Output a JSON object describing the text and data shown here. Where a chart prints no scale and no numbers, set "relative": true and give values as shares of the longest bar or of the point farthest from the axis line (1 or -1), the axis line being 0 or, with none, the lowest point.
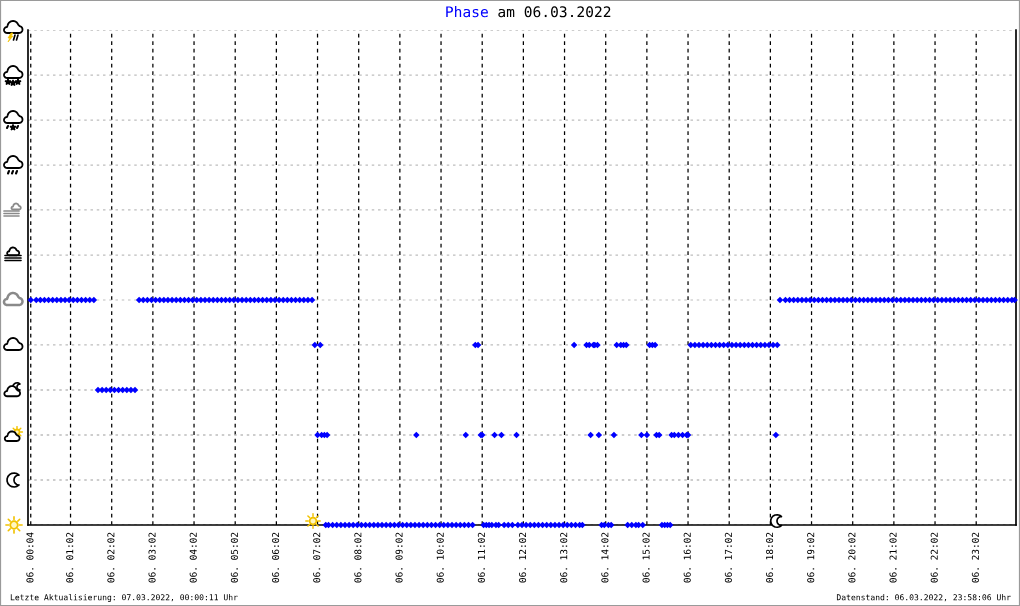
{
  "chart_data": {
    "type": "scatter",
    "title": "am 06.03.2022",
    "annotations": [
      "Letzte Aktualisierung: 07.03.2022, 00:00:11 Uhr",
      "Datenstand: 06.03.2022, 23:58:06 Uhr"
    ],
    "xlim": [
      "2022-03-06T00:00",
      "2022-03-07T00:00"
    ],
    "xticks": [
      {
        "value": "2022-03-06T00:04",
        "label": "06. 00:04"
      },
      {
        "value": "2022-03-06T01:02",
        "label": "06. 01:02"
      },
      {
        "value": "2022-03-06T02:02",
        "label": "06. 02:02"
      },
      {
        "value": "2022-03-06T03:02",
        "label": "06. 03:02"
      },
      {
        "value": "2022-03-06T04:02",
        "label": "06. 04:02"
      },
      {
        "value": "2022-03-06T05:02",
        "label": "06. 05:02"
      },
      {
        "value": "2022-03-06T06:02",
        "label": "06. 06:02"
      },
      {
        "value": "2022-03-06T07:02",
        "label": "06. 07:02"
      },
      {
        "value": "2022-03-06T08:02",
        "label": "06. 08:02"
      },
      {
        "value": "2022-03-06T09:02",
        "label": "06. 09:02"
      },
      {
        "value": "2022-03-06T10:02",
        "label": "06. 10:02"
      },
      {
        "value": "2022-03-06T11:02",
        "label": "06. 11:02"
      },
      {
        "value": "2022-03-06T12:02",
        "label": "06. 12:02"
      },
      {
        "value": "2022-03-06T13:02",
        "label": "06. 13:02"
      },
      {
        "value": "2022-03-06T14:02",
        "label": "06. 14:02"
      },
      {
        "value": "2022-03-06T15:02",
        "label": "06. 15:02"
      },
      {
        "value": "2022-03-06T16:02",
        "label": "06. 16:02"
      },
      {
        "value": "2022-03-06T17:02",
        "label": "06. 17:02"
      },
      {
        "value": "2022-03-06T18:02",
        "label": "06. 18:02"
      },
      {
        "value": "2022-03-06T19:02",
        "label": "06. 19:02"
      },
      {
        "value": "2022-03-06T20:02",
        "label": "06. 20:02"
      },
      {
        "value": "2022-03-06T21:02",
        "label": "06. 21:02"
      },
      {
        "value": "2022-03-06T22:02",
        "label": "06. 22:02"
      },
      {
        "value": "2022-03-06T23:02",
        "label": "06. 23:02"
      }
    ],
    "relative": true,
    "grid": true,
    "marker": "diamond",
    "series": [
      {
        "name": "Phase",
        "color": "#0000ff",
        "x": [
          "2022-03-06T00:04",
          "2022-03-06T00:12",
          "2022-03-06T00:18",
          "2022-03-06T00:24",
          "2022-03-06T00:30",
          "2022-03-06T00:36",
          "2022-03-06T00:42",
          "2022-03-06T00:48",
          "2022-03-06T00:54",
          "2022-03-06T01:00",
          "2022-03-06T01:06",
          "2022-03-06T01:12",
          "2022-03-06T01:18",
          "2022-03-06T01:24",
          "2022-03-06T01:30",
          "2022-03-06T01:36",
          "2022-03-06T01:42",
          "2022-03-06T01:48",
          "2022-03-06T01:54",
          "2022-03-06T02:00",
          "2022-03-06T02:06",
          "2022-03-06T02:12",
          "2022-03-06T02:18",
          "2022-03-06T02:24",
          "2022-03-06T02:30",
          "2022-03-06T02:36",
          "2022-03-06T02:42",
          "2022-03-06T02:48",
          "2022-03-06T02:54",
          "2022-03-06T03:00",
          "2022-03-06T03:06",
          "2022-03-06T03:12",
          "2022-03-06T03:18",
          "2022-03-06T03:24",
          "2022-03-06T03:30",
          "2022-03-06T03:36",
          "2022-03-06T03:42",
          "2022-03-06T03:48",
          "2022-03-06T03:54",
          "2022-03-06T04:00",
          "2022-03-06T04:06",
          "2022-03-06T04:12",
          "2022-03-06T04:18",
          "2022-03-06T04:24",
          "2022-03-06T04:30",
          "2022-03-06T04:36",
          "2022-03-06T04:42",
          "2022-03-06T04:48",
          "2022-03-06T04:54",
          "2022-03-06T05:00",
          "2022-03-06T05:06",
          "2022-03-06T05:12",
          "2022-03-06T05:18",
          "2022-03-06T05:24",
          "2022-03-06T05:30",
          "2022-03-06T05:36",
          "2022-03-06T05:42",
          "2022-03-06T05:48",
          "2022-03-06T05:54",
          "2022-03-06T06:00",
          "2022-03-06T06:06",
          "2022-03-06T06:12",
          "2022-03-06T06:18",
          "2022-03-06T06:24",
          "2022-03-06T06:30",
          "2022-03-06T06:36",
          "2022-03-06T06:42",
          "2022-03-06T06:48",
          "2022-03-06T06:54",
          "2022-03-06T06:58",
          "2022-03-06T07:02",
          "2022-03-06T07:06",
          "2022-03-06T07:08",
          "2022-03-06T07:12",
          "2022-03-06T07:14",
          "2022-03-06T07:16",
          "2022-03-06T07:18",
          "2022-03-06T07:24",
          "2022-03-06T07:30",
          "2022-03-06T07:36",
          "2022-03-06T07:42",
          "2022-03-06T07:48",
          "2022-03-06T07:54",
          "2022-03-06T08:00",
          "2022-03-06T08:06",
          "2022-03-06T08:12",
          "2022-03-06T08:18",
          "2022-03-06T08:24",
          "2022-03-06T08:30",
          "2022-03-06T08:36",
          "2022-03-06T08:42",
          "2022-03-06T08:48",
          "2022-03-06T08:54",
          "2022-03-06T09:00",
          "2022-03-06T09:06",
          "2022-03-06T09:12",
          "2022-03-06T09:18",
          "2022-03-06T09:24",
          "2022-03-06T09:26",
          "2022-03-06T09:30",
          "2022-03-06T09:36",
          "2022-03-06T09:42",
          "2022-03-06T09:48",
          "2022-03-06T09:54",
          "2022-03-06T10:00",
          "2022-03-06T10:06",
          "2022-03-06T10:12",
          "2022-03-06T10:18",
          "2022-03-06T10:24",
          "2022-03-06T10:30",
          "2022-03-06T10:36",
          "2022-03-06T10:38",
          "2022-03-06T10:42",
          "2022-03-06T10:48",
          "2022-03-06T10:52",
          "2022-03-06T10:56",
          "2022-03-06T11:00",
          "2022-03-06T11:02",
          "2022-03-06T11:04",
          "2022-03-06T11:08",
          "2022-03-06T11:12",
          "2022-03-06T11:16",
          "2022-03-06T11:20",
          "2022-03-06T11:22",
          "2022-03-06T11:26",
          "2022-03-06T11:30",
          "2022-03-06T11:34",
          "2022-03-06T11:40",
          "2022-03-06T11:46",
          "2022-03-06T11:52",
          "2022-03-06T11:54",
          "2022-03-06T12:00",
          "2022-03-06T12:06",
          "2022-03-06T12:12",
          "2022-03-06T12:18",
          "2022-03-06T12:24",
          "2022-03-06T12:30",
          "2022-03-06T12:36",
          "2022-03-06T12:42",
          "2022-03-06T12:48",
          "2022-03-06T12:54",
          "2022-03-06T13:00",
          "2022-03-06T13:06",
          "2022-03-06T13:12",
          "2022-03-06T13:16",
          "2022-03-06T13:18",
          "2022-03-06T13:24",
          "2022-03-06T13:28",
          "2022-03-06T13:34",
          "2022-03-06T13:38",
          "2022-03-06T13:40",
          "2022-03-06T13:44",
          "2022-03-06T13:46",
          "2022-03-06T13:50",
          "2022-03-06T13:52",
          "2022-03-06T13:56",
          "2022-03-06T14:00",
          "2022-03-06T14:06",
          "2022-03-06T14:10",
          "2022-03-06T14:14",
          "2022-03-06T14:18",
          "2022-03-06T14:24",
          "2022-03-06T14:28",
          "2022-03-06T14:32",
          "2022-03-06T14:34",
          "2022-03-06T14:40",
          "2022-03-06T14:46",
          "2022-03-06T14:50",
          "2022-03-06T14:54",
          "2022-03-06T14:56",
          "2022-03-06T15:02",
          "2022-03-06T15:06",
          "2022-03-06T15:10",
          "2022-03-06T15:14",
          "2022-03-06T15:16",
          "2022-03-06T15:20",
          "2022-03-06T15:24",
          "2022-03-06T15:28",
          "2022-03-06T15:32",
          "2022-03-06T15:36",
          "2022-03-06T15:38",
          "2022-03-06T15:42",
          "2022-03-06T15:48",
          "2022-03-06T15:54",
          "2022-03-06T16:00",
          "2022-03-06T16:02",
          "2022-03-06T16:06",
          "2022-03-06T16:12",
          "2022-03-06T16:18",
          "2022-03-06T16:24",
          "2022-03-06T16:30",
          "2022-03-06T16:36",
          "2022-03-06T16:42",
          "2022-03-06T16:48",
          "2022-03-06T16:54",
          "2022-03-06T17:00",
          "2022-03-06T17:06",
          "2022-03-06T17:12",
          "2022-03-06T17:18",
          "2022-03-06T17:24",
          "2022-03-06T17:30",
          "2022-03-06T17:36",
          "2022-03-06T17:42",
          "2022-03-06T17:48",
          "2022-03-06T17:54",
          "2022-03-06T18:00",
          "2022-03-06T18:06",
          "2022-03-06T18:10",
          "2022-03-06T18:12",
          "2022-03-06T18:16",
          "2022-03-06T18:24",
          "2022-03-06T18:30",
          "2022-03-06T18:36",
          "2022-03-06T18:42",
          "2022-03-06T18:48",
          "2022-03-06T18:54",
          "2022-03-06T19:00",
          "2022-03-06T19:06",
          "2022-03-06T19:12",
          "2022-03-06T19:18",
          "2022-03-06T19:24",
          "2022-03-06T19:30",
          "2022-03-06T19:36",
          "2022-03-06T19:42",
          "2022-03-06T19:48",
          "2022-03-06T19:54",
          "2022-03-06T20:00",
          "2022-03-06T20:06",
          "2022-03-06T20:12",
          "2022-03-06T20:18",
          "2022-03-06T20:24",
          "2022-03-06T20:30",
          "2022-03-06T20:36",
          "2022-03-06T20:42",
          "2022-03-06T20:48",
          "2022-03-06T20:54",
          "2022-03-06T21:00",
          "2022-03-06T21:06",
          "2022-03-06T21:12",
          "2022-03-06T21:18",
          "2022-03-06T21:24",
          "2022-03-06T21:30",
          "2022-03-06T21:36",
          "2022-03-06T21:42",
          "2022-03-06T21:48",
          "2022-03-06T21:54",
          "2022-03-06T22:00",
          "2022-03-06T22:06",
          "2022-03-06T22:12",
          "2022-03-06T22:18",
          "2022-03-06T22:24",
          "2022-03-06T22:30",
          "2022-03-06T22:36",
          "2022-03-06T22:42",
          "2022-03-06T22:48",
          "2022-03-06T22:54",
          "2022-03-06T23:00",
          "2022-03-06T23:06",
          "2022-03-06T23:12",
          "2022-03-06T23:18",
          "2022-03-06T23:24",
          "2022-03-06T23:30",
          "2022-03-06T23:36",
          "2022-03-06T23:42",
          "2022-03-06T23:48",
          "2022-03-06T23:54",
          "2022-03-06T23:58"
        ],
        "values": [
          1,
          1,
          1,
          1,
          1,
          1,
          1,
          1,
          1,
          1,
          1,
          1,
          1,
          1,
          1,
          1,
          0.6,
          0.6,
          0.6,
          0.6,
          0.6,
          0.6,
          0.6,
          0.6,
          0.6,
          0.6,
          1,
          1,
          1,
          1,
          1,
          1,
          1,
          1,
          1,
          1,
          1,
          1,
          1,
          1,
          1,
          1,
          1,
          1,
          1,
          1,
          1,
          1,
          1,
          1,
          1,
          1,
          1,
          1,
          1,
          1,
          1,
          1,
          1,
          1,
          1,
          1,
          1,
          1,
          1,
          1,
          1,
          1,
          1,
          0.8,
          0.4,
          0.8,
          0.4,
          0.4,
          0,
          0.4,
          0,
          0,
          0,
          0,
          0,
          0,
          0,
          0,
          0,
          0,
          0,
          0,
          0,
          0,
          0,
          0,
          0,
          0,
          0,
          0,
          0,
          0,
          0.4,
          0,
          0,
          0,
          0,
          0,
          0,
          0,
          0,
          0,
          0,
          0,
          0,
          0.4,
          0,
          0,
          0.8,
          0.8,
          0.4,
          0.4,
          0,
          0,
          0,
          0,
          0.4,
          0,
          0,
          0.4,
          0,
          0,
          0,
          0.4,
          0,
          0,
          0,
          0,
          0,
          0,
          0,
          0,
          0,
          0,
          0,
          0,
          0,
          0,
          0.8,
          0,
          0,
          0,
          0.8,
          0.8,
          0.4,
          0.8,
          0.8,
          0.8,
          0.4,
          0,
          0,
          0,
          0,
          0.4,
          0.8,
          0.8,
          0.8,
          0.8,
          0,
          0,
          0,
          0,
          0.4,
          0,
          0.4,
          0.8,
          0.8,
          0.8,
          0.4,
          0.4,
          0,
          0,
          0,
          0,
          0.4,
          0.4,
          0.4,
          0.4,
          0.4,
          0.4,
          0.8,
          0.8,
          0.8,
          0.8,
          0.8,
          0.8,
          0.8,
          0.8,
          0.8,
          0.8,
          0.8,
          0.8,
          0.8,
          0.8,
          0.8,
          0.8,
          0.8,
          0.8,
          0.8,
          0.8,
          0.8,
          0.4,
          0.8,
          1,
          1,
          1,
          1,
          1,
          1,
          1,
          1,
          1,
          1,
          1,
          1,
          1,
          1,
          1,
          1,
          1,
          1,
          1,
          1,
          1,
          1,
          1,
          1,
          1,
          1,
          1,
          1,
          1,
          1,
          1,
          1,
          1,
          1,
          1,
          1,
          1,
          1,
          1,
          1,
          1,
          1,
          1,
          1,
          1,
          1,
          1,
          1,
          1,
          1,
          1,
          1,
          1,
          1,
          1,
          1,
          1,
          1
        ]
      }
    ]
  }
}
